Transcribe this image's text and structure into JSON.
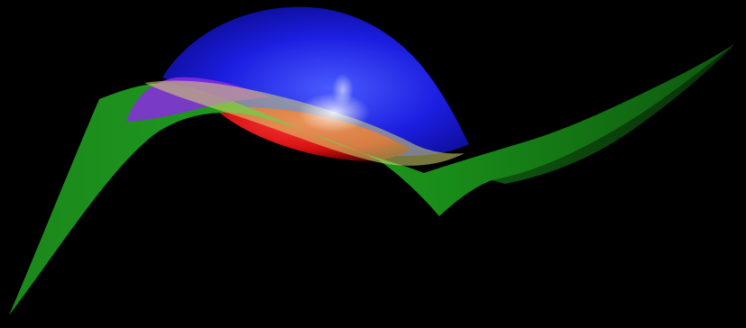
{
  "scene": {
    "background_color": "#000000",
    "surfaces": [
      {
        "name": "blue-dome-surface",
        "color": "#1e1ee6"
      },
      {
        "name": "red-lower-surface",
        "color": "#e61414"
      },
      {
        "name": "green-ribbon-surface",
        "color": "#18b418"
      },
      {
        "name": "translucent-purple-fold",
        "color": "#8a2be2"
      },
      {
        "name": "translucent-gold-fold",
        "color": "#c8c850"
      }
    ]
  }
}
